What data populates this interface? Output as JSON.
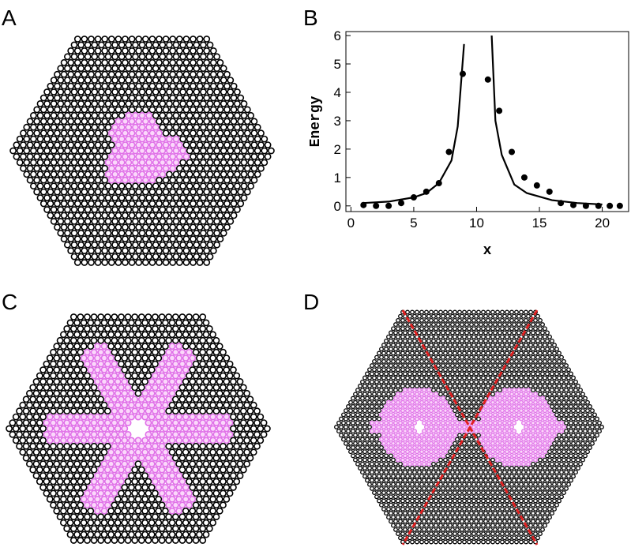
{
  "panel_labels": [
    "A",
    "B",
    "C",
    "D"
  ],
  "chart_data": {
    "type": "scatter",
    "x_label": "x",
    "y_label": "Energy",
    "xlim": [
      -0.4,
      22.1
    ],
    "xticks": [
      0,
      5,
      10,
      15,
      20
    ],
    "ylim": [
      -0.2,
      6.14
    ],
    "yticks": [
      0,
      1,
      2,
      3,
      4,
      5,
      6
    ],
    "series": [
      {
        "type": "scatter",
        "color": "#000000",
        "x": [
          1,
          2,
          3,
          4,
          5,
          6,
          7,
          7.8,
          8.9,
          10.9,
          11.8,
          12.8,
          13.8,
          14.8,
          15.8,
          16.7,
          17.7,
          18.7,
          19.7,
          20.6,
          21.4
        ],
        "values": [
          0.03,
          0,
          0,
          0.1,
          0.3,
          0.5,
          0.8,
          1.9,
          4.65,
          4.45,
          3.35,
          1.9,
          1.0,
          0.72,
          0.5,
          0.1,
          0.03,
          0,
          0,
          0,
          0
        ]
      },
      {
        "type": "line",
        "color": "#000000",
        "x": [
          1,
          3,
          5,
          6,
          7,
          8,
          8.5,
          9.0,
          10,
          11.2,
          11.5,
          12,
          13,
          14,
          16,
          18,
          20
        ],
        "values": [
          0.1,
          0.15,
          0.3,
          0.45,
          0.8,
          1.6,
          2.8,
          5.7,
          null,
          6,
          3.0,
          1.8,
          0.75,
          0.45,
          0.2,
          0.1,
          0.05
        ]
      }
    ]
  }
}
